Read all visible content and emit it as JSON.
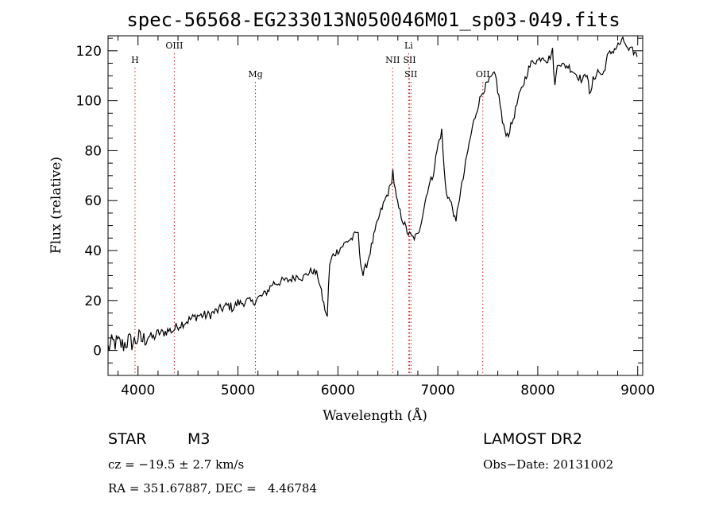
{
  "chart_data": {
    "type": "line",
    "title": "spec-56568-EG233013N050046M01_sp03-049.fits",
    "xlabel": "Wavelength (Å)",
    "ylabel": "Flux (relative)",
    "xlim": [
      3700,
      9050
    ],
    "ylim": [
      -10,
      126
    ],
    "xticks": [
      4000,
      5000,
      6000,
      7000,
      8000,
      9000
    ],
    "yticks": [
      0,
      20,
      40,
      60,
      80,
      100,
      120
    ],
    "grid": false,
    "line_color": "#000000",
    "marker_color": "#d22020",
    "series": [
      {
        "x": [
          3700,
          3750,
          3800,
          3850,
          3900,
          3950,
          4000,
          4050,
          4100,
          4150,
          4200,
          4250,
          4300,
          4350,
          4400,
          4450,
          4500,
          4550,
          4600,
          4650,
          4700,
          4750,
          4800,
          4850,
          4900,
          4950,
          5000,
          5050,
          5100,
          5150,
          5200,
          5250,
          5300,
          5350,
          5400,
          5450,
          5500,
          5550,
          5600,
          5650,
          5700,
          5750,
          5800,
          5850,
          5880,
          5890,
          5900,
          5920,
          5950,
          6000,
          6050,
          6100,
          6150,
          6200,
          6220,
          6250,
          6300,
          6350,
          6400,
          6450,
          6500,
          6530,
          6550,
          6560,
          6580,
          6600,
          6650,
          6700,
          6750,
          6800,
          6850,
          6900,
          6950,
          7000,
          7040,
          7060,
          7080,
          7100,
          7150,
          7180,
          7200,
          7250,
          7300,
          7350,
          7400,
          7450,
          7500,
          7550,
          7580,
          7600,
          7630,
          7650,
          7700,
          7750,
          7800,
          7850,
          7900,
          7950,
          8000,
          8050,
          8100,
          8150,
          8170,
          8200,
          8250,
          8300,
          8350,
          8400,
          8450,
          8500,
          8520,
          8550,
          8600,
          8650,
          8700,
          8750,
          8800,
          8850,
          8880,
          8900,
          8950,
          9000
        ],
        "y": [
          1,
          3,
          3,
          2,
          4,
          3,
          5,
          4,
          6,
          5,
          7,
          7,
          8,
          8,
          10,
          11,
          12,
          13,
          14,
          14,
          14,
          15,
          16,
          17,
          18,
          17,
          19,
          19,
          20,
          19,
          21,
          22,
          24,
          27,
          27,
          28,
          28,
          29,
          30,
          29,
          31,
          32,
          30,
          20,
          15,
          9,
          22,
          35,
          38,
          40,
          42,
          44,
          45,
          48,
          38,
          30,
          36,
          44,
          52,
          58,
          63,
          66,
          72,
          68,
          62,
          58,
          52,
          47,
          45,
          46,
          55,
          65,
          70,
          82,
          88,
          74,
          64,
          62,
          57,
          50,
          58,
          68,
          80,
          90,
          98,
          104,
          107,
          110,
          110,
          104,
          97,
          90,
          86,
          92,
          100,
          106,
          112,
          116,
          116,
          118,
          116,
          120,
          105,
          116,
          114,
          114,
          112,
          110,
          108,
          112,
          100,
          108,
          112,
          110,
          118,
          120,
          122,
          124,
          123,
          120,
          120,
          118
        ]
      }
    ],
    "spectral_lines": [
      {
        "label": "H",
        "x": 3970,
        "row": 2
      },
      {
        "label": "OIII",
        "x": 4363,
        "row": 1
      },
      {
        "label": "Mg",
        "x": 5175,
        "row": 3
      },
      {
        "label": "NII",
        "x": 6548,
        "row": 2
      },
      {
        "label": "Li",
        "x": 6708,
        "row": 1
      },
      {
        "label": "SII",
        "x": 6717,
        "row": 2
      },
      {
        "label": "SII",
        "x": 6731,
        "row": 3
      },
      {
        "label": "OII",
        "x": 7450,
        "row": 3
      }
    ]
  },
  "info": {
    "object_type": "STAR",
    "subclass": "M3",
    "survey": "LAMOST DR2",
    "cz": "cz = −19.5 ± 2.7 km/s",
    "obs_date": "Obs−Date: 20131002",
    "coords": "RA = 351.67887, DEC =   4.46784"
  }
}
